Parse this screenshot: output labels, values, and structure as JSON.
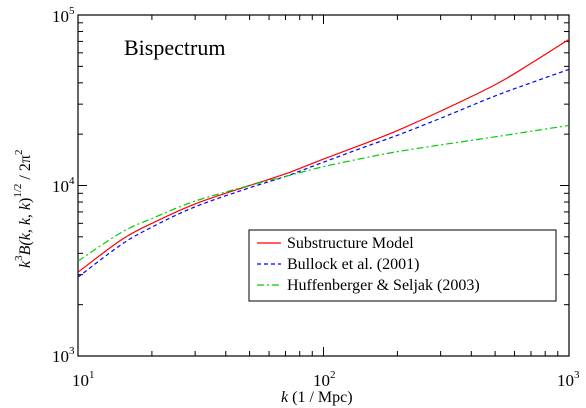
{
  "chart_data": {
    "type": "line",
    "annotation": "Bispectrum",
    "xlabel": {
      "var": "k",
      "units": " (1 / Mpc)"
    },
    "ylabel": {
      "k": "k",
      "p3": "3",
      "B": "B(",
      "args": "k, k, k",
      "close": ")",
      "p12": "1/2",
      "tail": " / 2π",
      "p2": "2"
    },
    "xscale": "log",
    "yscale": "log",
    "xlim": [
      10,
      1000
    ],
    "ylim": [
      1000,
      100000
    ],
    "x_ticks": [
      {
        "base": "10",
        "exp": "1",
        "value": 10
      },
      {
        "base": "10",
        "exp": "2",
        "value": 100
      },
      {
        "base": "10",
        "exp": "3",
        "value": 1000
      }
    ],
    "y_ticks": [
      {
        "base": "10",
        "exp": "3",
        "value": 1000
      },
      {
        "base": "10",
        "exp": "4",
        "value": 10000
      },
      {
        "base": "10",
        "exp": "5",
        "value": 100000
      }
    ],
    "legend_position": "lower-right",
    "series": [
      {
        "name": "Substructure Model",
        "color": "#ff0000",
        "dash": "solid",
        "x": [
          10,
          15,
          20,
          30,
          50,
          70,
          100,
          150,
          200,
          300,
          500,
          700,
          1000
        ],
        "y": [
          3100,
          4800,
          6000,
          7800,
          10000,
          11700,
          14300,
          17800,
          21000,
          27300,
          39000,
          52000,
          72000
        ]
      },
      {
        "name": "Bullock et al. (2001)",
        "color": "#0000ff",
        "dash": "dashed",
        "x": [
          10,
          15,
          20,
          30,
          50,
          70,
          100,
          150,
          200,
          300,
          500,
          700,
          1000
        ],
        "y": [
          2900,
          4500,
          5700,
          7500,
          9700,
          11300,
          13700,
          17000,
          19700,
          24800,
          33500,
          40000,
          48000
        ]
      },
      {
        "name": "Huffenberger & Seljak (2003)",
        "color": "#00cc00",
        "dash": "dashdot",
        "x": [
          10,
          15,
          20,
          30,
          50,
          70,
          100,
          150,
          200,
          300,
          500,
          700,
          1000
        ],
        "y": [
          3600,
          5300,
          6400,
          8100,
          10000,
          11300,
          12900,
          14600,
          15800,
          17300,
          19300,
          20800,
          22500
        ]
      }
    ]
  }
}
